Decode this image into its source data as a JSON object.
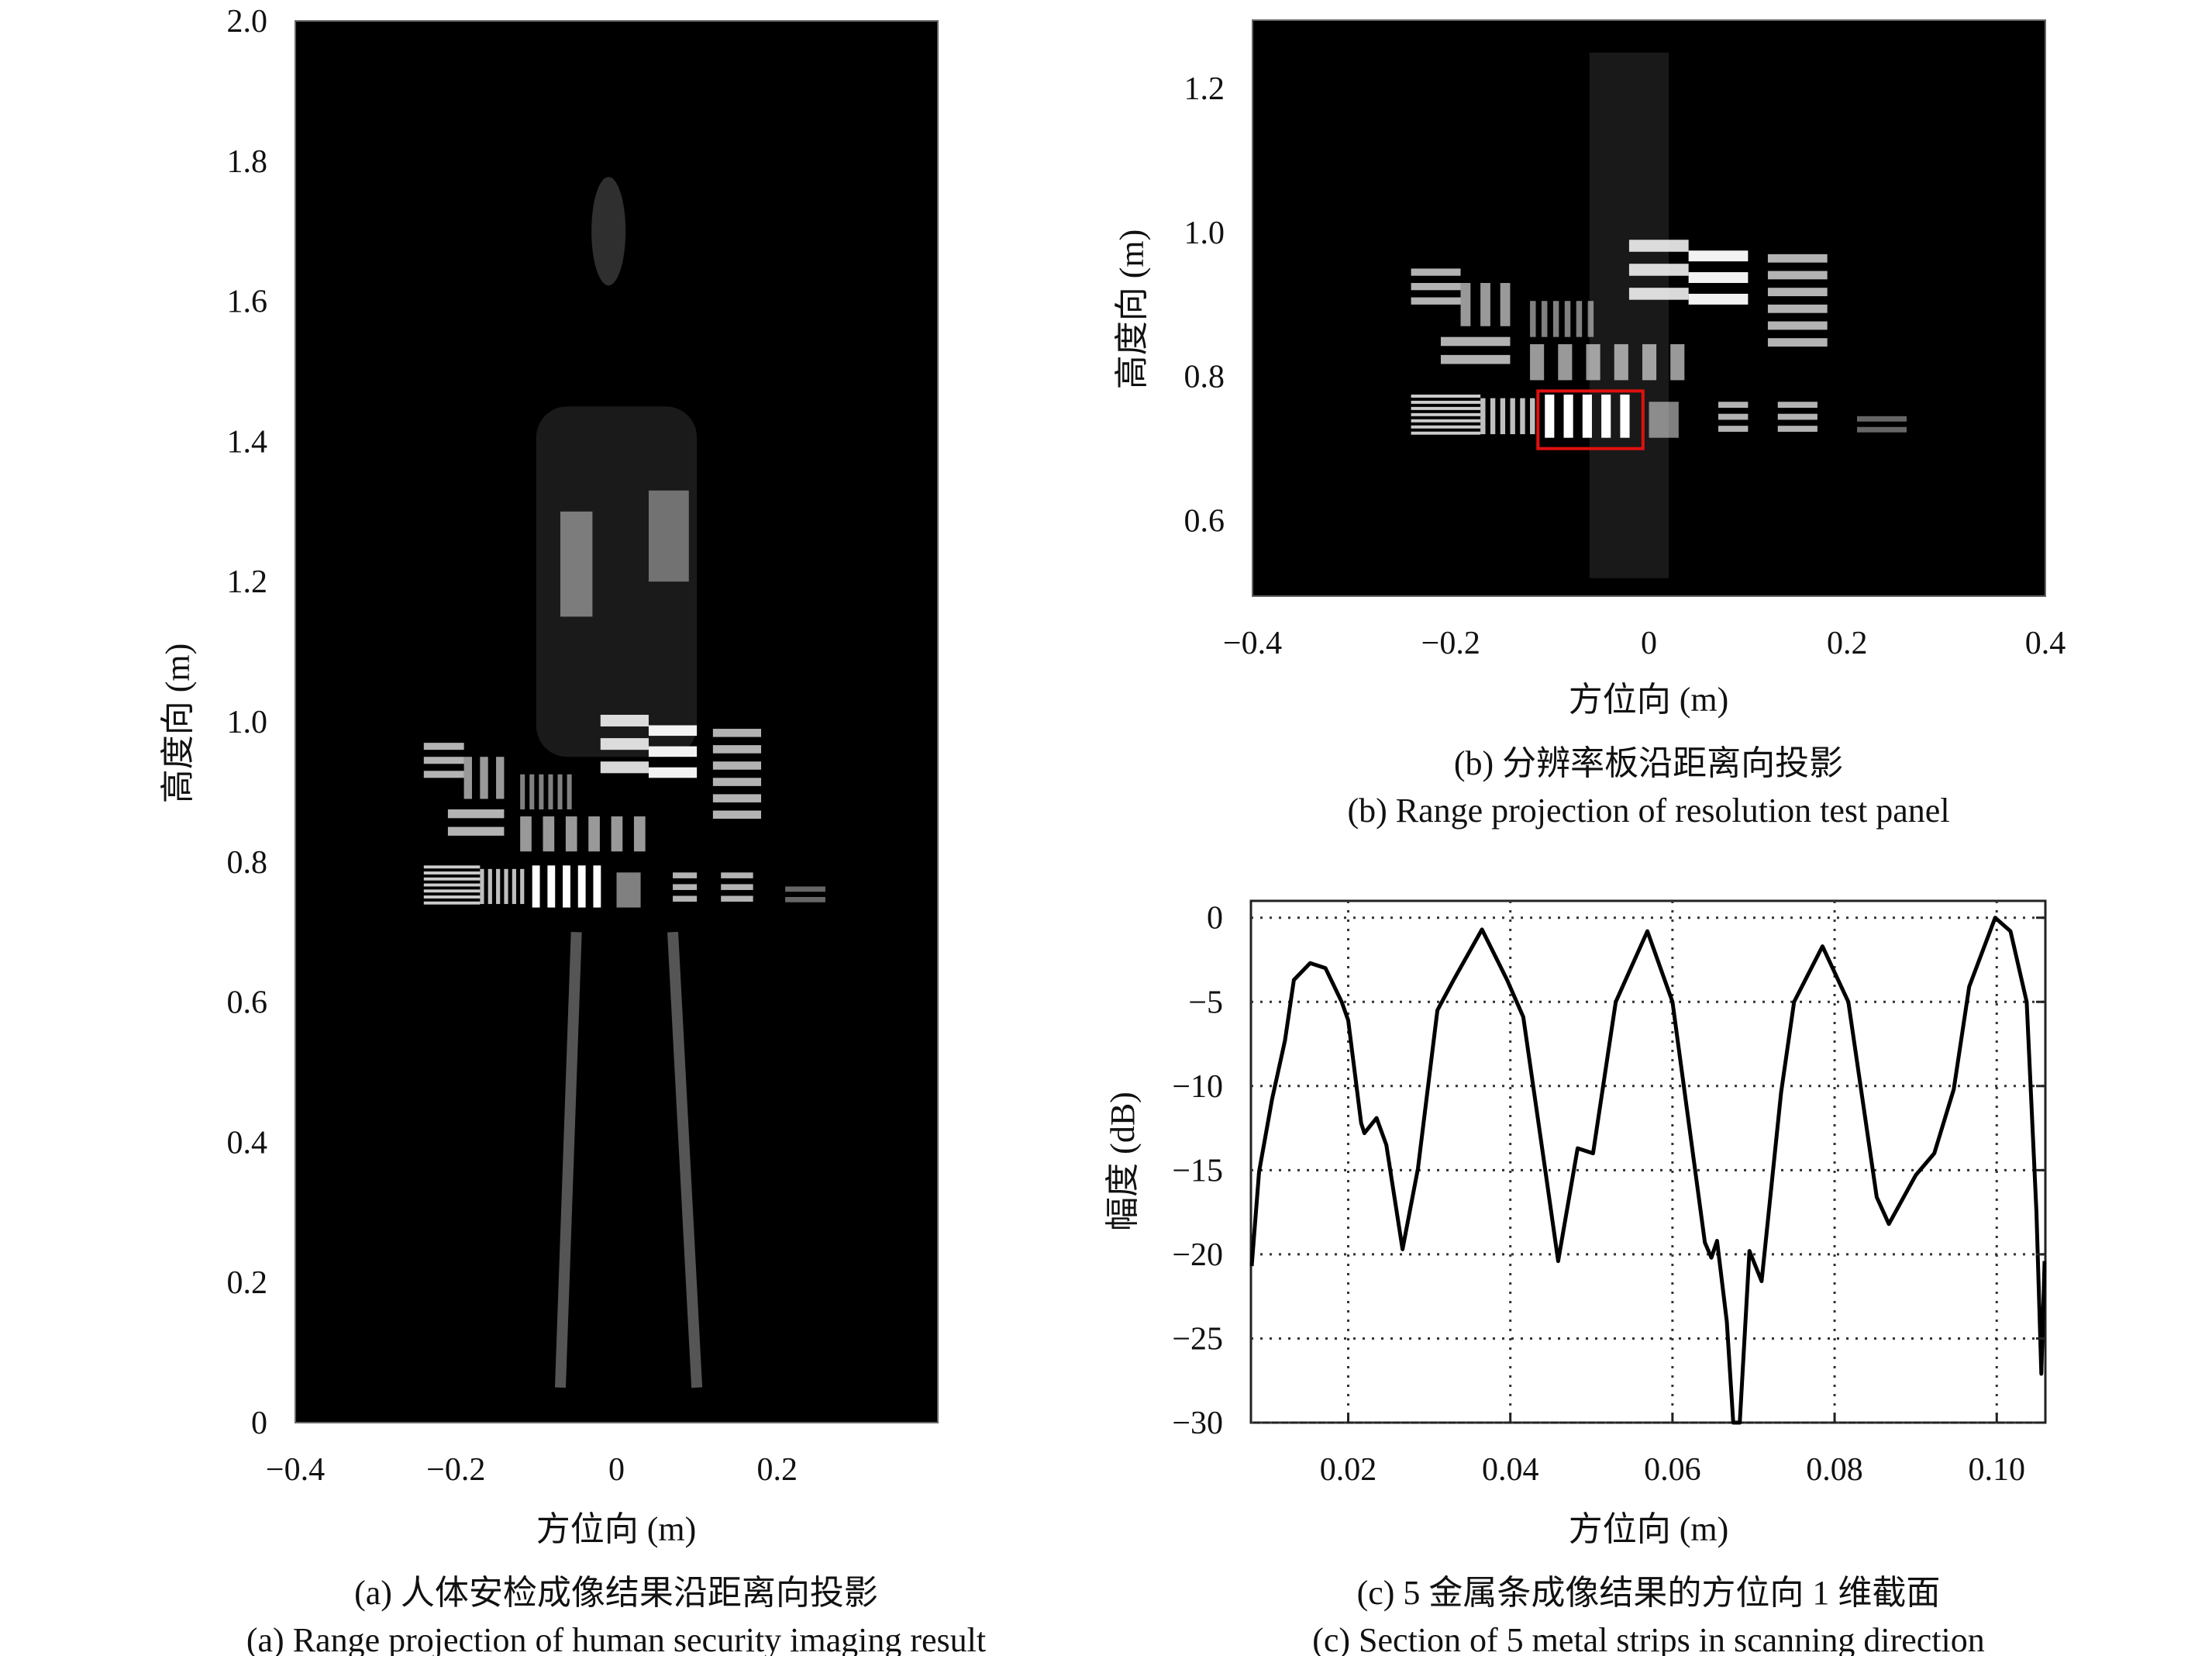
{
  "panels": {
    "a": {
      "caption_cn": "(a) 人体安检成像结果沿距离向投影",
      "caption_en": "(a) Range projection of human security imaging result",
      "xlabel": "方位向 (m)",
      "ylabel": "高度向 (m)"
    },
    "b": {
      "caption_cn": "(b) 分辨率板沿距离向投影",
      "caption_en": "(b) Range projection of resolution test panel",
      "xlabel": "方位向 (m)",
      "ylabel": "高度向 (m)",
      "highlight_color": "#e01010"
    },
    "c": {
      "caption_cn": "(c) 5 金属条成像结果的方位向 1 维截面",
      "caption_en": "(c) Section of 5 metal strips in scanning direction",
      "xlabel": "方位向 (m)",
      "ylabel": "幅度 (dB)"
    }
  },
  "chart_data": [
    {
      "type": "heatmap",
      "panel": "a",
      "colormap": "gray",
      "xlim": [
        -0.4,
        0.4
      ],
      "ylim": [
        0,
        2.0
      ],
      "xticks": [
        "−0.4",
        "−0.2",
        "0",
        "0.2"
      ],
      "xtick_values": [
        -0.4,
        -0.2,
        0,
        0.2
      ],
      "yticks": [
        "0",
        "0.2",
        "0.4",
        "0.6",
        "0.8",
        "1.0",
        "1.2",
        "1.4",
        "1.6",
        "1.8",
        "2.0"
      ],
      "ytick_values": [
        0,
        0.2,
        0.4,
        0.6,
        0.8,
        1.0,
        1.2,
        1.4,
        1.6,
        1.8,
        2.0
      ],
      "xlabel": "方位向 (m)",
      "ylabel": "高度向 (m)"
    },
    {
      "type": "heatmap",
      "panel": "b",
      "colormap": "gray",
      "xlim": [
        -0.4,
        0.4
      ],
      "ylim": [
        0.495,
        1.295
      ],
      "xticks": [
        "−0.4",
        "−0.2",
        "0",
        "0.2",
        "0.4"
      ],
      "xtick_values": [
        -0.4,
        -0.2,
        0,
        0.2,
        0.4
      ],
      "yticks": [
        "0.6",
        "0.8",
        "1.0",
        "1.2"
      ],
      "ytick_values": [
        0.6,
        0.8,
        1.0,
        1.2
      ],
      "xlabel": "方位向 (m)",
      "ylabel": "高度向 (m)",
      "highlight_box": {
        "x": [
          -0.112,
          -0.006
        ],
        "y": [
          0.7,
          0.78
        ]
      }
    },
    {
      "type": "line",
      "panel": "c",
      "xlim": [
        0.008,
        0.106
      ],
      "ylim": [
        -30,
        1
      ],
      "grid": true,
      "xticks": [
        "0.02",
        "0.04",
        "0.06",
        "0.08",
        "0.10"
      ],
      "xtick_values": [
        0.02,
        0.04,
        0.06,
        0.08,
        0.1
      ],
      "yticks": [
        "0",
        "−5",
        "−10",
        "−15",
        "−20",
        "−25",
        "−30"
      ],
      "ytick_values": [
        0,
        -5,
        -10,
        -15,
        -20,
        -25,
        -30
      ],
      "xlabel": "方位向 (m)",
      "ylabel": "幅度 (dB)",
      "series": [
        {
          "x": [
            0.0081,
            0.009,
            0.0106,
            0.0122,
            0.0133,
            0.0153,
            0.0172,
            0.0192,
            0.02,
            0.0216,
            0.022,
            0.0235,
            0.0247,
            0.0267,
            0.0286,
            0.031,
            0.033,
            0.0365,
            0.0396,
            0.0416,
            0.0444,
            0.0459,
            0.0483,
            0.0502,
            0.053,
            0.0569,
            0.06,
            0.064,
            0.0648,
            0.0655,
            0.0667,
            0.0675,
            0.0683,
            0.0695,
            0.071,
            0.0734,
            0.075,
            0.0785,
            0.0817,
            0.0852,
            0.0867,
            0.09,
            0.0923,
            0.0947,
            0.0966,
            0.0998,
            0.1017,
            0.1037,
            0.1049,
            0.1055,
            0.1059
          ],
          "y": [
            -20.7,
            -15.1,
            -10.8,
            -7.3,
            -3.7,
            -2.7,
            -3.0,
            -5.0,
            -6.1,
            -12.2,
            -12.8,
            -11.9,
            -13.5,
            -19.7,
            -14.9,
            -5.5,
            -3.7,
            -0.7,
            -3.7,
            -5.9,
            -15.3,
            -20.4,
            -13.7,
            -14.0,
            -5.0,
            -0.8,
            -5.0,
            -19.3,
            -20.2,
            -19.2,
            -24.0,
            -30,
            -30,
            -19.8,
            -21.6,
            -10.4,
            -5.0,
            -1.7,
            -5.0,
            -16.6,
            -18.2,
            -15.3,
            -14.0,
            -10.2,
            -4.1,
            0,
            -0.8,
            -5.0,
            -17.5,
            -27.1,
            -20.4
          ]
        }
      ]
    }
  ]
}
